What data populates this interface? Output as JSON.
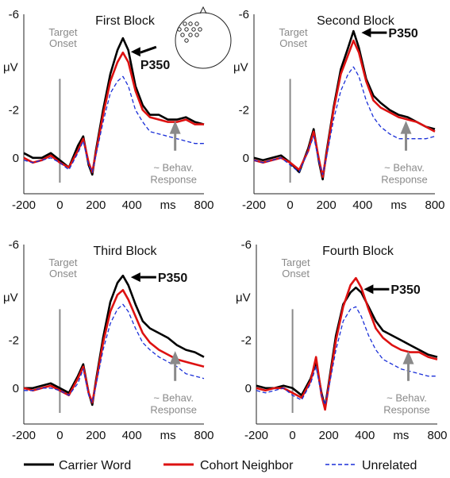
{
  "legend": {
    "carrier": "Carrier Word",
    "cohort": "Cohort Neighbor",
    "unrelated": "Unrelated"
  },
  "labels": {
    "unit": "μV",
    "ms": "ms",
    "target_line1": "Target",
    "target_line2": "Onset",
    "behav_line1": "~ Behav.",
    "behav_line2": "Response",
    "peak": "P350"
  },
  "colors": {
    "carrier": "#000000",
    "cohort": "#dd1111",
    "unrelated": "#1a2fd8",
    "annotation": "#8a8a8a"
  },
  "chart_data": [
    {
      "type": "line",
      "title": "First Block",
      "xticks": [
        -200,
        0,
        200,
        400,
        800
      ],
      "yticks": [
        -6,
        -2,
        0
      ],
      "xlim": [
        -200,
        800
      ],
      "ylim": [
        -6,
        1.5
      ],
      "inverted_y": true,
      "series": [
        {
          "name": "Carrier Word",
          "style": "solid-black",
          "x": [
            -200,
            -150,
            -100,
            -50,
            0,
            50,
            100,
            130,
            160,
            180,
            200,
            240,
            280,
            320,
            350,
            380,
            420,
            460,
            500,
            550,
            600,
            650,
            700,
            750,
            800
          ],
          "y": [
            -0.2,
            0,
            0,
            -0.2,
            0.1,
            0.4,
            -0.5,
            -0.9,
            0.3,
            0.7,
            -0.3,
            -2.0,
            -3.5,
            -4.5,
            -5.0,
            -4.5,
            -3.0,
            -2.2,
            -1.8,
            -1.8,
            -1.6,
            -1.6,
            -1.7,
            -1.5,
            -1.4
          ]
        },
        {
          "name": "Cohort Neighbor",
          "style": "solid-red",
          "x": [
            -200,
            -150,
            -100,
            -50,
            0,
            50,
            100,
            130,
            160,
            180,
            200,
            240,
            280,
            320,
            350,
            380,
            420,
            460,
            500,
            550,
            600,
            650,
            700,
            750,
            800
          ],
          "y": [
            0,
            0.2,
            0.1,
            -0.1,
            0.2,
            0.4,
            -0.3,
            -0.8,
            0.2,
            0.6,
            -0.2,
            -1.8,
            -3.2,
            -4.0,
            -4.4,
            -4.0,
            -2.8,
            -2.0,
            -1.7,
            -1.6,
            -1.5,
            -1.5,
            -1.6,
            -1.4,
            -1.4
          ]
        },
        {
          "name": "Unrelated",
          "style": "dashed-blue",
          "x": [
            -200,
            -150,
            -100,
            -50,
            0,
            50,
            100,
            130,
            160,
            180,
            200,
            240,
            280,
            320,
            350,
            380,
            420,
            460,
            500,
            550,
            600,
            650,
            700,
            750,
            800
          ],
          "y": [
            0.1,
            0.2,
            0.1,
            0,
            0.2,
            0.5,
            -0.2,
            -0.7,
            0.3,
            0.6,
            -0.1,
            -1.5,
            -2.7,
            -3.2,
            -3.4,
            -3.0,
            -2.0,
            -1.5,
            -1.1,
            -1.0,
            -0.9,
            -0.8,
            -0.7,
            -0.6,
            -0.6
          ]
        }
      ]
    },
    {
      "type": "line",
      "title": "Second Block",
      "xticks": [
        -200,
        0,
        200,
        400,
        800
      ],
      "yticks": [
        -6,
        -2,
        0
      ],
      "xlim": [
        -200,
        800
      ],
      "ylim": [
        -6,
        1.5
      ],
      "inverted_y": true,
      "series": [
        {
          "name": "Carrier Word",
          "style": "solid-black",
          "x": [
            -200,
            -150,
            -100,
            -50,
            0,
            50,
            100,
            130,
            160,
            180,
            200,
            240,
            280,
            320,
            350,
            380,
            420,
            460,
            500,
            550,
            600,
            650,
            700,
            750,
            800
          ],
          "y": [
            0,
            0.1,
            0,
            -0.1,
            0.2,
            0.6,
            -0.4,
            -1.2,
            0.2,
            0.9,
            -0.2,
            -2.1,
            -3.7,
            -4.6,
            -5.3,
            -4.6,
            -3.3,
            -2.6,
            -2.3,
            -2.0,
            -1.8,
            -1.7,
            -1.5,
            -1.3,
            -1.2
          ]
        },
        {
          "name": "Cohort Neighbor",
          "style": "solid-red",
          "x": [
            -200,
            -150,
            -100,
            -50,
            0,
            50,
            100,
            130,
            160,
            180,
            200,
            240,
            280,
            320,
            350,
            380,
            420,
            460,
            500,
            550,
            600,
            650,
            700,
            750,
            800
          ],
          "y": [
            0.1,
            0.2,
            0.1,
            0,
            0.2,
            0.5,
            -0.3,
            -1.1,
            0.1,
            0.8,
            -0.1,
            -2.0,
            -3.5,
            -4.3,
            -4.9,
            -4.4,
            -3.2,
            -2.4,
            -2.1,
            -1.9,
            -1.7,
            -1.6,
            -1.5,
            -1.3,
            -1.1
          ]
        },
        {
          "name": "Unrelated",
          "style": "dashed-blue",
          "x": [
            -200,
            -150,
            -100,
            -50,
            0,
            50,
            100,
            130,
            160,
            180,
            200,
            240,
            280,
            320,
            350,
            380,
            420,
            460,
            500,
            550,
            600,
            650,
            700,
            750,
            800
          ],
          "y": [
            0.1,
            0.2,
            0.1,
            0,
            0.3,
            0.6,
            -0.3,
            -0.9,
            0.2,
            0.7,
            0,
            -1.6,
            -2.8,
            -3.5,
            -3.8,
            -3.4,
            -2.4,
            -1.7,
            -1.3,
            -1.0,
            -0.8,
            -0.8,
            -0.8,
            -0.8,
            -0.9
          ]
        }
      ]
    },
    {
      "type": "line",
      "title": "Third Block",
      "xticks": [
        -200,
        0,
        200,
        400,
        800
      ],
      "yticks": [
        -6,
        -2,
        0
      ],
      "xlim": [
        -200,
        800
      ],
      "ylim": [
        -6,
        1.5
      ],
      "inverted_y": true,
      "series": [
        {
          "name": "Carrier Word",
          "style": "solid-black",
          "x": [
            -200,
            -150,
            -100,
            -50,
            0,
            50,
            100,
            130,
            160,
            180,
            200,
            240,
            280,
            320,
            350,
            380,
            420,
            460,
            500,
            550,
            600,
            650,
            700,
            750,
            800
          ],
          "y": [
            0,
            0,
            -0.1,
            -0.2,
            0,
            0.2,
            -0.5,
            -1.0,
            0.2,
            0.7,
            -0.3,
            -2.1,
            -3.6,
            -4.4,
            -4.7,
            -4.3,
            -3.5,
            -2.8,
            -2.5,
            -2.3,
            -2.1,
            -1.8,
            -1.6,
            -1.5,
            -1.3
          ]
        },
        {
          "name": "Cohort Neighbor",
          "style": "solid-red",
          "x": [
            -200,
            -150,
            -100,
            -50,
            0,
            50,
            100,
            130,
            160,
            180,
            200,
            240,
            280,
            320,
            350,
            380,
            420,
            460,
            500,
            550,
            600,
            650,
            700,
            750,
            800
          ],
          "y": [
            0,
            0.1,
            0,
            -0.1,
            0.1,
            0.3,
            -0.4,
            -0.9,
            0.2,
            0.6,
            -0.2,
            -1.9,
            -3.2,
            -3.9,
            -4.1,
            -3.7,
            -3.0,
            -2.3,
            -1.9,
            -1.6,
            -1.4,
            -1.2,
            -1.1,
            -1.0,
            -0.9
          ]
        },
        {
          "name": "Unrelated",
          "style": "dashed-blue",
          "x": [
            -200,
            -150,
            -100,
            -50,
            0,
            50,
            100,
            130,
            160,
            180,
            200,
            240,
            280,
            320,
            350,
            380,
            420,
            460,
            500,
            550,
            600,
            650,
            700,
            750,
            800
          ],
          "y": [
            0.1,
            0.1,
            0,
            0,
            0.1,
            0.3,
            -0.2,
            -0.8,
            0.3,
            0.6,
            -0.1,
            -1.6,
            -2.7,
            -3.3,
            -3.5,
            -3.2,
            -2.5,
            -1.9,
            -1.6,
            -1.3,
            -1.1,
            -0.9,
            -0.6,
            -0.5,
            -0.4
          ]
        }
      ]
    },
    {
      "type": "line",
      "title": "Fourth Block",
      "xticks": [
        -200,
        0,
        200,
        400,
        800
      ],
      "yticks": [
        -6,
        -2,
        0
      ],
      "xlim": [
        -200,
        800
      ],
      "ylim": [
        -6,
        1.5
      ],
      "inverted_y": true,
      "series": [
        {
          "name": "Carrier Word",
          "style": "solid-black",
          "x": [
            -200,
            -150,
            -100,
            -50,
            0,
            50,
            100,
            130,
            160,
            180,
            200,
            240,
            280,
            320,
            350,
            380,
            420,
            460,
            500,
            550,
            600,
            650,
            700,
            750,
            800
          ],
          "y": [
            -0.1,
            0,
            0,
            -0.1,
            0,
            0.3,
            -0.4,
            -1.1,
            0.2,
            0.8,
            -0.2,
            -2.2,
            -3.5,
            -4.0,
            -4.2,
            -4.0,
            -3.4,
            -2.8,
            -2.4,
            -2.2,
            -2.0,
            -1.8,
            -1.6,
            -1.4,
            -1.3
          ]
        },
        {
          "name": "Cohort Neighbor",
          "style": "solid-red",
          "x": [
            -200,
            -150,
            -100,
            -50,
            0,
            50,
            100,
            130,
            160,
            180,
            200,
            240,
            280,
            320,
            350,
            380,
            420,
            460,
            500,
            550,
            600,
            650,
            700,
            750,
            800
          ],
          "y": [
            0,
            0.1,
            0,
            0,
            0.2,
            0.4,
            -0.3,
            -1.3,
            0.3,
            0.9,
            -0.1,
            -2.0,
            -3.4,
            -4.3,
            -4.6,
            -4.2,
            -3.3,
            -2.5,
            -2.1,
            -1.8,
            -1.6,
            -1.5,
            -1.5,
            -1.3,
            -1.2
          ]
        },
        {
          "name": "Unrelated",
          "style": "dashed-blue",
          "x": [
            -200,
            -150,
            -100,
            -50,
            0,
            50,
            100,
            130,
            160,
            180,
            200,
            240,
            280,
            320,
            350,
            380,
            420,
            460,
            500,
            550,
            600,
            650,
            700,
            750,
            800
          ],
          "y": [
            0.1,
            0.2,
            0.1,
            0,
            0.3,
            0.5,
            -0.2,
            -0.9,
            0.3,
            0.7,
            0,
            -1.6,
            -2.8,
            -3.3,
            -3.4,
            -3.0,
            -2.2,
            -1.6,
            -1.2,
            -1.0,
            -0.8,
            -0.7,
            -0.6,
            -0.5,
            -0.5
          ]
        }
      ]
    }
  ]
}
